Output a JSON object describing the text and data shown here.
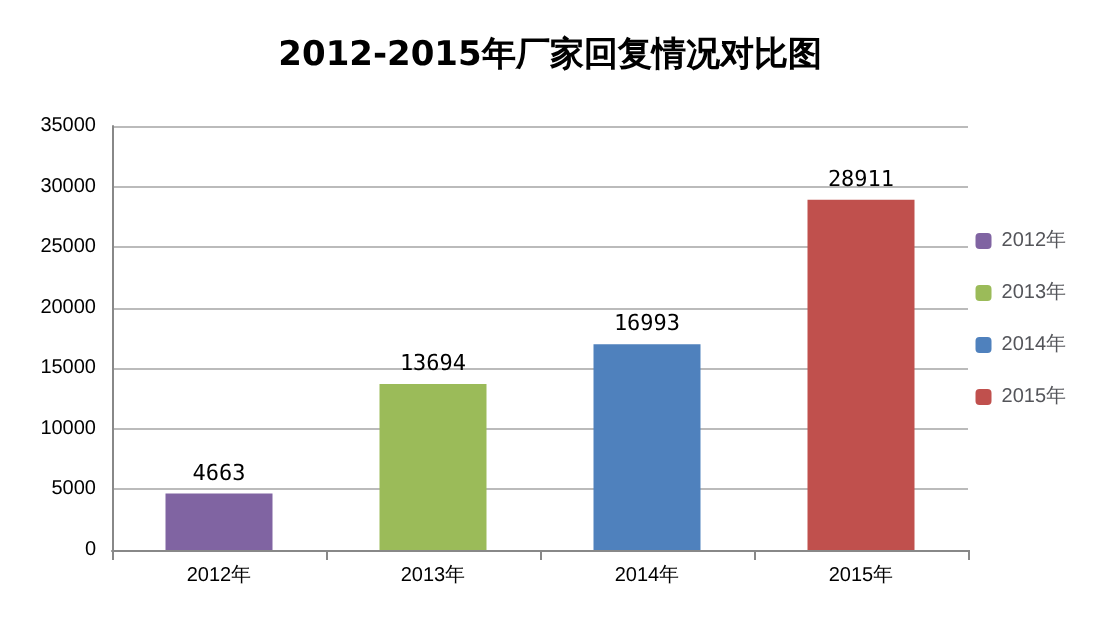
{
  "chart_data": {
    "type": "bar",
    "title": "2012-2015年厂家回复情况对比图",
    "categories": [
      "2012年",
      "2013年",
      "2014年",
      "2015年"
    ],
    "series": [
      {
        "name": "2012年",
        "color": "#8064a2",
        "values": [
          4663,
          null,
          null,
          null
        ]
      },
      {
        "name": "2013年",
        "color": "#9bbb59",
        "values": [
          null,
          13694,
          null,
          null
        ]
      },
      {
        "name": "2014年",
        "color": "#4f81bd",
        "values": [
          null,
          null,
          16993,
          null
        ]
      },
      {
        "name": "2015年",
        "color": "#c0504d",
        "values": [
          null,
          null,
          null,
          28911
        ]
      }
    ],
    "stacked": true,
    "ylim": [
      0,
      35000
    ],
    "yticks": [
      0,
      5000,
      10000,
      15000,
      20000,
      25000,
      30000,
      35000
    ],
    "grid": "y",
    "legend": "right",
    "data_labels": true
  }
}
